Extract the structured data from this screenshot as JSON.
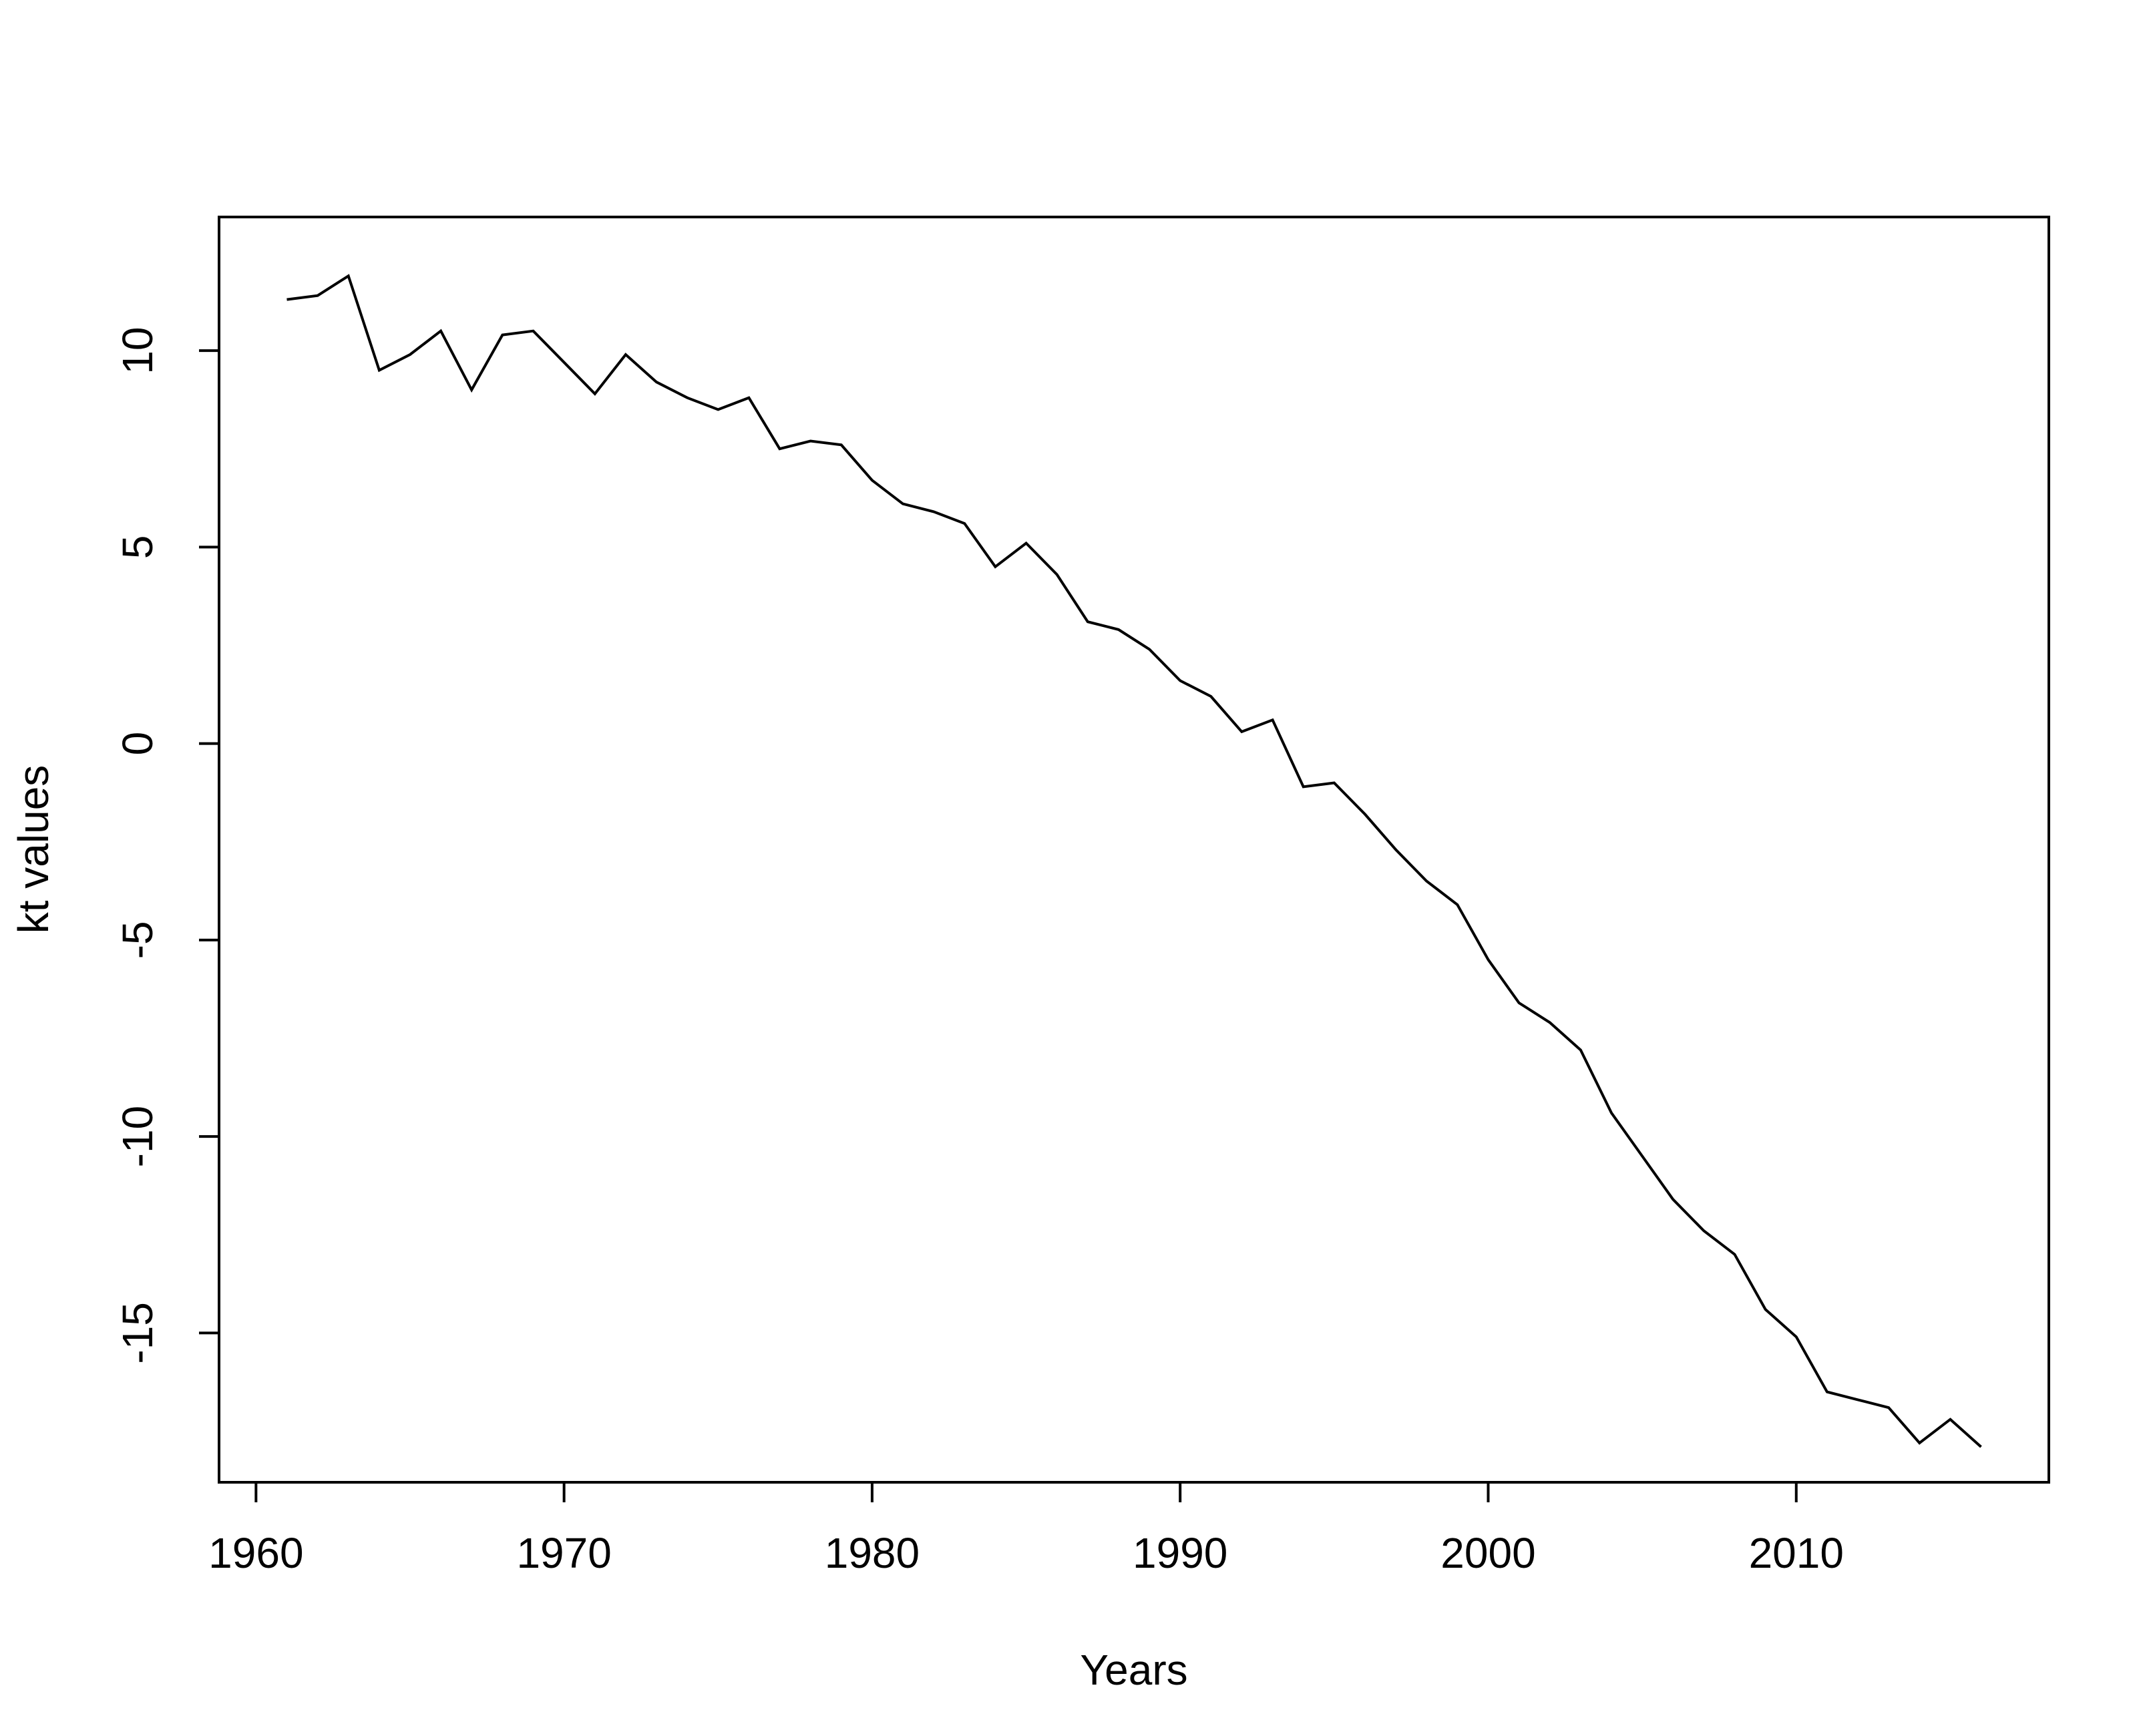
{
  "chart_data": {
    "type": "line",
    "title": "",
    "xlabel": "Years",
    "ylabel": "kt values",
    "xlim": [
      1958.8,
      2018.2
    ],
    "ylim": [
      -18.8,
      13.4
    ],
    "xticks": [
      1960,
      1970,
      1980,
      1990,
      2000,
      2010
    ],
    "yticks": [
      -15,
      -10,
      -5,
      0,
      5,
      10
    ],
    "grid": false,
    "legend": "none",
    "line_color": "#000000",
    "series": [
      {
        "x": [
          1961,
          1962,
          1963,
          1964,
          1965,
          1966,
          1967,
          1968,
          1969,
          1970,
          1971,
          1972,
          1973,
          1974,
          1975,
          1976,
          1977,
          1978,
          1979,
          1980,
          1981,
          1982,
          1983,
          1984,
          1985,
          1986,
          1987,
          1988,
          1989,
          1990,
          1991,
          1992,
          1993,
          1994,
          1995,
          1996,
          1997,
          1998,
          1999,
          2000,
          2001,
          2002,
          2003,
          2004,
          2005,
          2006,
          2007,
          2008,
          2009,
          2010,
          2011,
          2012,
          2013,
          2014,
          2015,
          2016
        ],
        "values": [
          11.3,
          11.4,
          11.9,
          9.5,
          9.9,
          10.5,
          9.0,
          10.4,
          10.5,
          9.7,
          8.9,
          9.9,
          9.2,
          8.8,
          8.5,
          8.8,
          7.5,
          7.7,
          7.6,
          6.7,
          6.1,
          5.9,
          5.6,
          4.5,
          5.1,
          4.3,
          3.1,
          2.9,
          2.4,
          1.6,
          1.2,
          0.3,
          0.6,
          -1.1,
          -1.0,
          -1.8,
          -2.7,
          -3.5,
          -4.1,
          -5.5,
          -6.6,
          -7.1,
          -7.8,
          -9.4,
          -10.5,
          -11.6,
          -12.4,
          -13.0,
          -14.4,
          -15.1,
          -16.5,
          -16.7,
          -16.9,
          -17.8,
          -17.2,
          -17.9
        ]
      }
    ]
  }
}
